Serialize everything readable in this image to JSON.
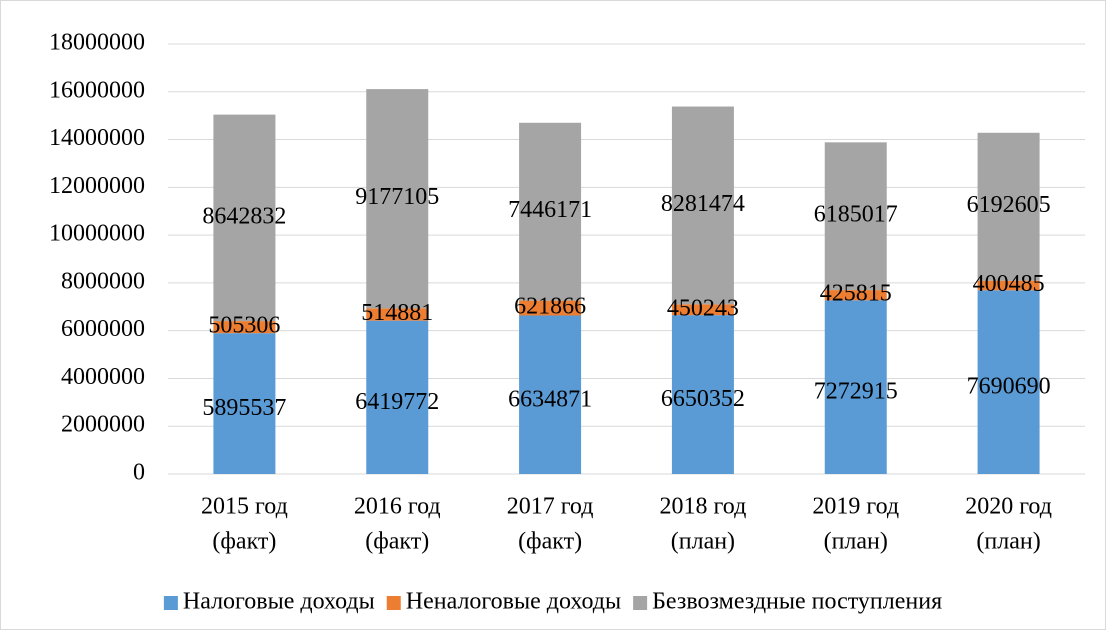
{
  "chart_data": {
    "type": "stacked_bar",
    "categories": [
      [
        "2015 год",
        "(факт)"
      ],
      [
        "2016 год",
        "(факт)"
      ],
      [
        "2017 год",
        "(факт)"
      ],
      [
        "2018 год",
        "(план)"
      ],
      [
        "2019 год",
        "(план)"
      ],
      [
        "2020 год",
        "(план)"
      ]
    ],
    "series": [
      {
        "name": "Налоговые доходы",
        "color": "#5b9bd5",
        "values": [
          5895537,
          6419772,
          6634871,
          6650352,
          7272915,
          7690690
        ]
      },
      {
        "name": "Неналоговые доходы",
        "color": "#ed7d31",
        "values": [
          505306,
          514881,
          621866,
          450243,
          425815,
          400485
        ]
      },
      {
        "name": "Безвозмездные поступления",
        "color": "#a5a5a5",
        "values": [
          8642832,
          9177105,
          7446171,
          8281474,
          6185017,
          6192605
        ]
      }
    ],
    "ylim": [
      0,
      18000000
    ],
    "yticks": [
      0,
      2000000,
      4000000,
      6000000,
      8000000,
      10000000,
      12000000,
      14000000,
      16000000,
      18000000
    ],
    "grid": true,
    "legend": "bottom"
  }
}
